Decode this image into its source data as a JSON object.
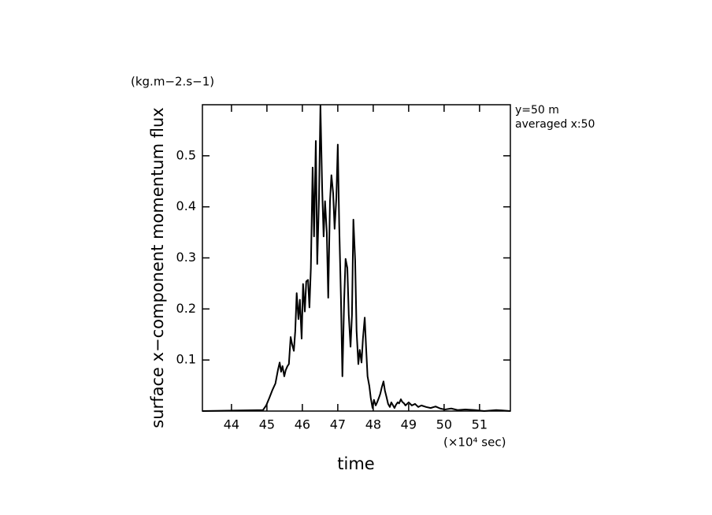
{
  "chart_data": {
    "type": "line",
    "y_label": "surface x−component momentum flux",
    "y_unit": "(kg.m−2.s−1)",
    "x_label": "time",
    "x_unit": "(×10⁴ sec)",
    "annotations": [
      "y=50 m",
      "averaged  x:50"
    ],
    "xlim": [
      43.18,
      51.87
    ],
    "ylim": [
      0,
      0.6
    ],
    "xticks": [
      44,
      45,
      46,
      47,
      48,
      49,
      50,
      51
    ],
    "yticks": [
      0.1,
      0.2,
      0.3,
      0.4,
      0.5
    ],
    "x": [
      43.18,
      44.89,
      44.98,
      45.07,
      45.16,
      45.24,
      45.31,
      45.36,
      45.4,
      45.44,
      45.49,
      45.53,
      45.58,
      45.62,
      45.67,
      45.71,
      45.76,
      45.8,
      45.84,
      45.89,
      45.93,
      45.98,
      46.02,
      46.07,
      46.11,
      46.16,
      46.2,
      46.24,
      46.29,
      46.33,
      46.38,
      46.42,
      46.47,
      46.51,
      46.56,
      46.6,
      46.64,
      46.69,
      46.73,
      46.78,
      46.82,
      46.87,
      46.91,
      46.96,
      47.0,
      47.04,
      47.09,
      47.13,
      47.18,
      47.22,
      47.27,
      47.31,
      47.36,
      47.4,
      47.44,
      47.49,
      47.53,
      47.58,
      47.62,
      47.67,
      47.71,
      47.76,
      47.8,
      47.84,
      47.89,
      47.93,
      47.98,
      48.02,
      48.07,
      48.11,
      48.16,
      48.2,
      48.24,
      48.29,
      48.33,
      48.38,
      48.42,
      48.47,
      48.51,
      48.56,
      48.6,
      48.64,
      48.69,
      48.73,
      48.78,
      48.82,
      48.87,
      48.91,
      49.0,
      49.09,
      49.18,
      49.27,
      49.36,
      49.49,
      49.62,
      49.76,
      49.89,
      50.02,
      50.2,
      50.38,
      50.6,
      50.87,
      51.13,
      51.47,
      51.87
    ],
    "series": [
      {
        "color": "#000000",
        "values": [
          0,
          0.002,
          0.011,
          0.026,
          0.042,
          0.054,
          0.08,
          0.095,
          0.077,
          0.088,
          0.068,
          0.08,
          0.088,
          0.092,
          0.145,
          0.131,
          0.118,
          0.157,
          0.231,
          0.18,
          0.218,
          0.142,
          0.249,
          0.195,
          0.254,
          0.257,
          0.203,
          0.28,
          0.477,
          0.342,
          0.529,
          0.288,
          0.418,
          0.598,
          0.434,
          0.342,
          0.411,
          0.349,
          0.222,
          0.411,
          0.462,
          0.426,
          0.357,
          0.418,
          0.522,
          0.365,
          0.218,
          0.068,
          0.218,
          0.298,
          0.28,
          0.188,
          0.126,
          0.188,
          0.375,
          0.295,
          0.157,
          0.092,
          0.12,
          0.095,
          0.142,
          0.183,
          0.123,
          0.068,
          0.049,
          0.026,
          0.006,
          0.022,
          0.011,
          0.017,
          0.026,
          0.034,
          0.046,
          0.058,
          0.04,
          0.026,
          0.014,
          0.008,
          0.017,
          0.011,
          0.006,
          0.012,
          0.017,
          0.015,
          0.023,
          0.018,
          0.015,
          0.011,
          0.017,
          0.011,
          0.014,
          0.008,
          0.011,
          0.008,
          0.006,
          0.009,
          0.005,
          0.003,
          0.005,
          0.002,
          0.003,
          0.002,
          0,
          0.002,
          0
        ]
      }
    ]
  }
}
